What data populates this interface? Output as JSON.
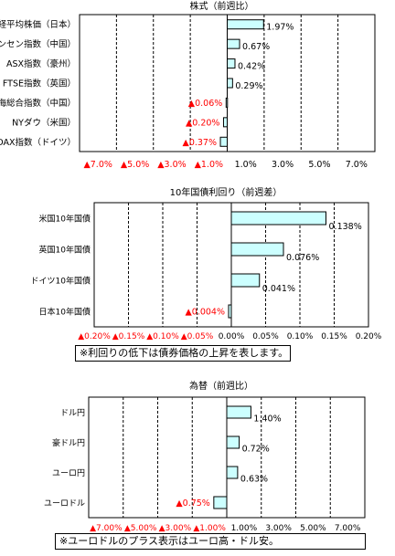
{
  "colors": {
    "bar_fill": "#ccffff",
    "bar_stroke": "#000000",
    "negative_label": "#ff0000",
    "grid": "#000000"
  },
  "chart_data": [
    {
      "type": "bar",
      "orientation": "horizontal",
      "title": "株式（前週比）",
      "categories": [
        "日経平均株価（日本）",
        "香港ハンセン指数（中国）",
        "ASX指数（豪州）",
        "FTSE指数（英国）",
        "上海総合指数（中国）",
        "NYダウ（米国）",
        "DAX指数（ドイツ）"
      ],
      "values": [
        1.97,
        0.67,
        0.42,
        0.29,
        -0.06,
        -0.2,
        -0.37
      ],
      "value_labels": [
        "1.97%",
        "0.67%",
        "0.42%",
        "0.29%",
        "▲0.06%",
        "▲0.20%",
        "▲0.37%"
      ],
      "tick_labels": [
        "▲7.0%",
        "▲5.0%",
        "▲3.0%",
        "▲1.0%",
        "1.0%",
        "3.0%",
        "5.0%",
        "7.0%"
      ],
      "xlim": [
        -8,
        8
      ],
      "grid": true
    },
    {
      "type": "bar",
      "orientation": "horizontal",
      "title": "10年国債利回り（前週差）",
      "categories": [
        "米国10年国債",
        "英国10年国債",
        "ドイツ10年国債",
        "日本10年国債"
      ],
      "values": [
        0.138,
        0.076,
        0.041,
        -0.004
      ],
      "value_labels": [
        "0.138%",
        "0.076%",
        "0.041%",
        "▲0.004%"
      ],
      "tick_labels": [
        "▲0.20%",
        "▲0.15%",
        "▲0.10%",
        "▲0.05%",
        "0.00%",
        "0.05%",
        "0.10%",
        "0.15%",
        "0.20%"
      ],
      "xlim": [
        -0.2,
        0.2
      ],
      "grid": true,
      "note": "※利回りの低下は債券価格の上昇を表します。"
    },
    {
      "type": "bar",
      "orientation": "horizontal",
      "title": "為替（前週比）",
      "categories": [
        "ドル円",
        "豪ドル円",
        "ユーロ円",
        "ユーロドル"
      ],
      "values": [
        1.4,
        0.72,
        0.63,
        -0.75
      ],
      "value_labels": [
        "1.40%",
        "0.72%",
        "0.63%",
        "▲0.75%"
      ],
      "tick_labels": [
        "▲7.00%",
        "▲5.00%",
        "▲3.00%",
        "▲1.00%",
        "1.00%",
        "3.00%",
        "5.00%",
        "7.00%"
      ],
      "xlim": [
        -8,
        8
      ],
      "grid": true,
      "note": "※ユーロドルのプラス表示はユーロ高・ドル安。"
    }
  ]
}
